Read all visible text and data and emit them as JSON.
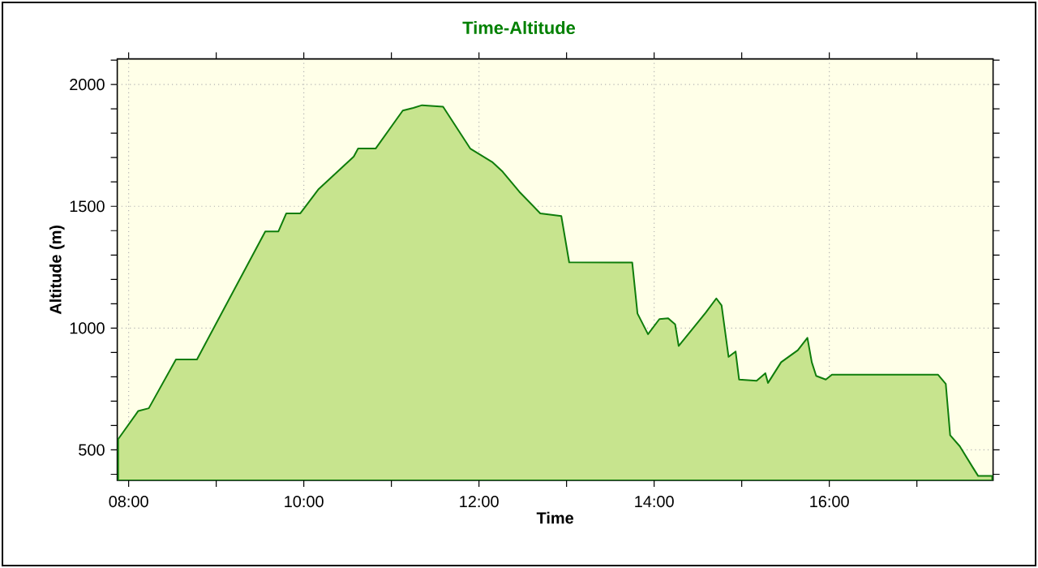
{
  "chart_data": {
    "type": "area",
    "title": "Time-Altitude",
    "xlabel": "Time",
    "ylabel": "Altitude (m)",
    "xlim": [
      7.87,
      17.87
    ],
    "ylim": [
      375,
      2105
    ],
    "xticks": [
      {
        "value": 8,
        "label": "08:00"
      },
      {
        "value": 9,
        "label": null
      },
      {
        "value": 10,
        "label": "10:00"
      },
      {
        "value": 11,
        "label": null
      },
      {
        "value": 12,
        "label": "12:00"
      },
      {
        "value": 13,
        "label": null
      },
      {
        "value": 14,
        "label": "14:00"
      },
      {
        "value": 15,
        "label": null
      },
      {
        "value": 16,
        "label": "16:00"
      },
      {
        "value": 17,
        "label": null
      }
    ],
    "yticks": [
      {
        "value": 400,
        "label": null
      },
      500,
      {
        "value": 600,
        "label": null
      },
      {
        "value": 700,
        "label": null
      },
      {
        "value": 800,
        "label": null
      },
      {
        "value": 900,
        "label": null
      },
      1000,
      {
        "value": 1100,
        "label": null
      },
      {
        "value": 1200,
        "label": null
      },
      {
        "value": 1300,
        "label": null
      },
      {
        "value": 1400,
        "label": null
      },
      1500,
      {
        "value": 1600,
        "label": null
      },
      {
        "value": 1700,
        "label": null
      },
      {
        "value": 1800,
        "label": null
      },
      {
        "value": 1900,
        "label": null
      },
      2000,
      {
        "value": 2100,
        "label": null
      }
    ],
    "grid": true,
    "series": [
      {
        "color": "#c7e48e",
        "x": [
          7.88,
          8.11,
          8.23,
          8.54,
          8.78,
          9.56,
          9.71,
          9.8,
          9.96,
          10.17,
          10.57,
          10.62,
          10.82,
          11.13,
          11.25,
          11.35,
          11.59,
          11.9,
          12.15,
          12.27,
          12.46,
          12.7,
          12.94,
          13.03,
          13.75,
          13.81,
          13.93,
          14.06,
          14.16,
          14.24,
          14.28,
          14.59,
          14.71,
          14.77,
          14.85,
          14.93,
          14.97,
          15.17,
          15.27,
          15.3,
          15.45,
          15.64,
          15.75,
          15.8,
          15.85,
          15.96,
          16.03,
          17.24,
          17.33,
          17.38,
          17.49,
          17.64,
          17.7,
          17.86
        ],
        "values": [
          544,
          660,
          671,
          871,
          871,
          1397,
          1397,
          1471,
          1471,
          1571,
          1704,
          1737,
          1737,
          1893,
          1904,
          1915,
          1909,
          1737,
          1682,
          1642,
          1560,
          1471,
          1460,
          1270,
          1269,
          1060,
          975,
          1037,
          1040,
          1015,
          927,
          1064,
          1122,
          1093,
          882,
          904,
          789,
          784,
          815,
          775,
          860,
          909,
          960,
          860,
          804,
          789,
          809,
          809,
          771,
          560,
          515,
          427,
          393,
          393
        ]
      }
    ]
  }
}
